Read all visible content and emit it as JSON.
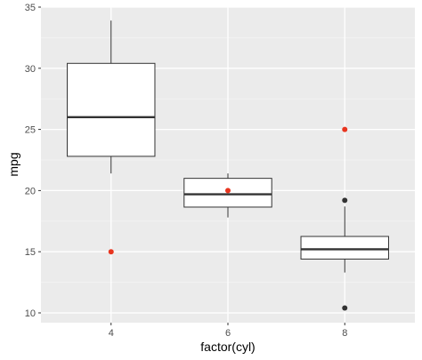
{
  "chart_data": {
    "type": "boxplot",
    "xlabel": "factor(cyl)",
    "ylabel": "mpg",
    "categories": [
      "4",
      "6",
      "8"
    ],
    "ylim": [
      9.2,
      35
    ],
    "yticks": [
      10,
      15,
      20,
      25,
      30,
      35
    ],
    "grid": true,
    "boxes": [
      {
        "category": "4",
        "whisker_low": 21.4,
        "q1": 22.8,
        "median": 26.0,
        "q3": 30.4,
        "whisker_high": 33.9,
        "outliers": []
      },
      {
        "category": "6",
        "whisker_low": 17.8,
        "q1": 18.65,
        "median": 19.7,
        "q3": 21.0,
        "whisker_high": 21.4,
        "outliers": []
      },
      {
        "category": "8",
        "whisker_low": 13.3,
        "q1": 14.4,
        "median": 15.2,
        "q3": 16.25,
        "whisker_high": 18.7,
        "outliers": [
          10.4,
          19.2
        ]
      }
    ],
    "highlight_points": [
      {
        "category": "4",
        "value": 15
      },
      {
        "category": "6",
        "value": 20
      },
      {
        "category": "8",
        "value": 25
      }
    ],
    "colors": {
      "panel": "#ebebeb",
      "grid_major": "#ffffff",
      "grid_minor": "#f5f5f5",
      "box_fill": "#ffffff",
      "box_line": "#333333",
      "outlier": "#333333",
      "highlight": "#e8351f"
    }
  }
}
